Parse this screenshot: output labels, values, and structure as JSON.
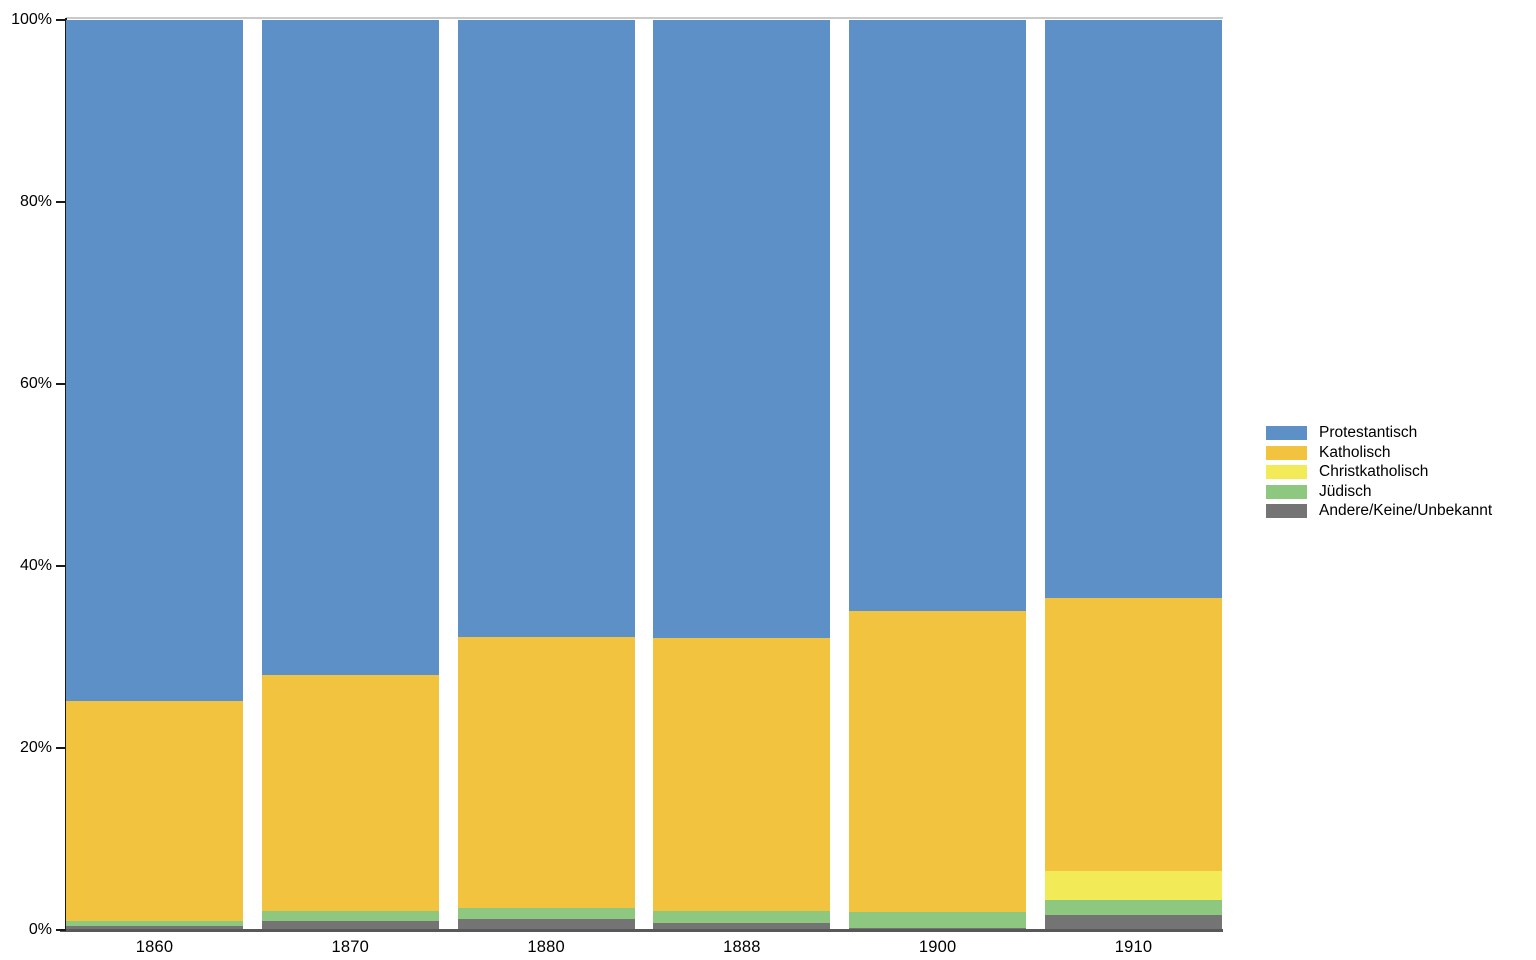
{
  "chart_data": {
    "type": "bar",
    "variant": "stacked-100-percent",
    "title": "",
    "xlabel": "",
    "ylabel": "",
    "categories": [
      "1860",
      "1870",
      "1880",
      "1888",
      "1900",
      "1910"
    ],
    "series": [
      {
        "name": "Protestantisch",
        "color": "#5e90c8",
        "values": [
          74.8,
          72.0,
          67.8,
          67.9,
          64.9,
          63.5
        ]
      },
      {
        "name": "Katholisch",
        "color": "#f2c33e",
        "values": [
          24.2,
          25.9,
          29.8,
          30.0,
          33.1,
          30.0
        ]
      },
      {
        "name": "Christkatholisch",
        "color": "#f2ea56",
        "values": [
          0,
          0,
          0,
          0,
          0,
          3.2
        ]
      },
      {
        "name": "Jüdisch",
        "color": "#8ec77f",
        "values": [
          0.55,
          1.1,
          1.2,
          1.3,
          1.8,
          1.7
        ]
      },
      {
        "name": "Andere/Keine/Unbekannt",
        "color": "#747474",
        "values": [
          0.45,
          1.0,
          1.2,
          0.8,
          0.2,
          1.6
        ]
      }
    ],
    "ylim": [
      0,
      100
    ],
    "ytick_labels": [
      "0%",
      "20%",
      "40%",
      "60%",
      "80%",
      "100%"
    ],
    "ytick_values": [
      0,
      20,
      40,
      60,
      80,
      100
    ],
    "grid": false,
    "legend_position": "right"
  },
  "axis_colors": {
    "axis_line": "#1a1a1a",
    "baseline": "#58585a",
    "top_gridline": "#c9c9c9"
  }
}
